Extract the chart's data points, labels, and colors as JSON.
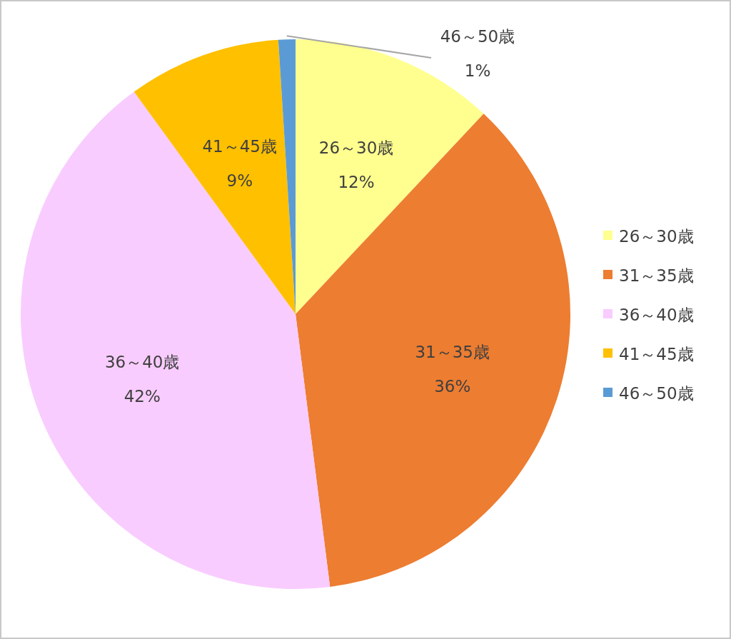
{
  "chart_data": {
    "type": "pie",
    "categories": [
      "26～30歳",
      "31～35歳",
      "36～40歳",
      "41～45歳",
      "46～50歳"
    ],
    "values": [
      12,
      36,
      42,
      9,
      1
    ],
    "colors": [
      "#ffff8f",
      "#ed7d31",
      "#f9ccff",
      "#ffc000",
      "#5b9bd5"
    ],
    "value_labels": [
      "12%",
      "36%",
      "42%",
      "9%",
      "1%"
    ],
    "legend": "right"
  }
}
